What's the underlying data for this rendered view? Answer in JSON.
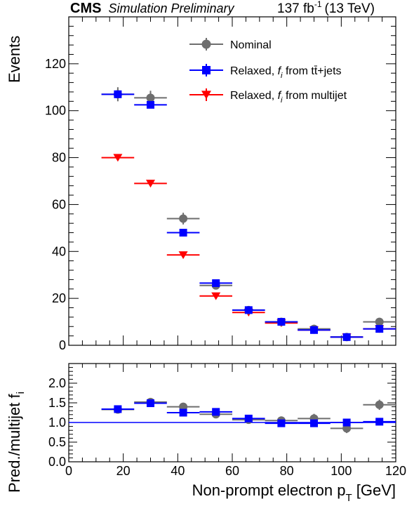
{
  "header": {
    "cms": "CMS",
    "subtitle": "Simulation Preliminary",
    "lumi_value": "137 fb",
    "lumi_exp": "-1",
    "energy": "(13 TeV)"
  },
  "colors": {
    "nominal": "#6e6e6e",
    "tt": "#0000ff",
    "multijet": "#ff0000",
    "ratio_line": "#0000ff"
  },
  "chart_data": [
    {
      "type": "scatter",
      "panel": "main",
      "ylabel": "Events",
      "ylim": [
        0,
        140
      ],
      "yticks": [
        0,
        20,
        40,
        60,
        80,
        100,
        120
      ],
      "bin_edges": [
        12,
        24,
        36,
        48,
        60,
        72,
        84,
        96,
        108,
        120
      ],
      "x": [
        18,
        30,
        42,
        54,
        66,
        78,
        90,
        102,
        114
      ],
      "legend": [
        {
          "key": "nominal",
          "label": "Nominal",
          "marker": "circle"
        },
        {
          "key": "tt",
          "label_main": "Relaxed, ",
          "f": "f",
          "i": "i",
          "label_rest": " from tt̄+jets",
          "marker": "square"
        },
        {
          "key": "multijet",
          "label_main": "Relaxed, ",
          "f": "f",
          "i": "i",
          "label_rest": " from multijet",
          "marker": "triangle"
        }
      ],
      "series": [
        {
          "name": "Nominal",
          "key": "nominal",
          "values": [
            107,
            105.5,
            54,
            25.5,
            15,
            10,
            7,
            3.5,
            10
          ],
          "errors": [
            3,
            3,
            2.5,
            1.5,
            1,
            1,
            0.8,
            0.6,
            1
          ]
        },
        {
          "name": "Relaxed, f_i from tt+jets",
          "key": "tt",
          "values": [
            107,
            102.5,
            48,
            26.5,
            15,
            10,
            6.5,
            3.5,
            7
          ],
          "errors": [
            1.2,
            1.2,
            0.8,
            0.6,
            0.5,
            0.4,
            0.3,
            0.3,
            0.3
          ]
        },
        {
          "name": "Relaxed, f_i from multijet",
          "key": "multijet",
          "values": [
            80,
            69,
            38.5,
            21,
            14,
            9.5,
            6.5,
            3.5,
            7
          ],
          "errors": [
            0.5,
            0.5,
            0.4,
            0.3,
            0.3,
            0.3,
            0.3,
            0.3,
            0.3
          ]
        }
      ]
    },
    {
      "type": "scatter",
      "panel": "ratio",
      "ylabel": "Pred./multijet f",
      "ylabel_sub": "i",
      "xlabel": "Non-prompt electron p",
      "xlabel_sub": "T",
      "xlabel_unit": " [GeV]",
      "xlim": [
        0,
        120
      ],
      "xticks": [
        0,
        20,
        40,
        60,
        80,
        100,
        120
      ],
      "ylim": [
        0,
        2.5
      ],
      "yticks": [
        "0.0",
        "0.5",
        "1.0",
        "1.5",
        "2.0"
      ],
      "reference_line": 1.0,
      "series": [
        {
          "name": "Nominal",
          "key": "nominal",
          "values": [
            1.33,
            1.52,
            1.4,
            1.21,
            1.07,
            1.05,
            1.1,
            0.85,
            1.45
          ],
          "errors": [
            0.05,
            0.05,
            0.06,
            0.06,
            0.07,
            0.08,
            0.12,
            0.12,
            0.13
          ]
        },
        {
          "name": "Relaxed, f_i from tt+jets",
          "key": "tt",
          "values": [
            1.34,
            1.49,
            1.25,
            1.27,
            1.1,
            0.98,
            0.98,
            1.0,
            1.02
          ],
          "errors": [
            0.02,
            0.02,
            0.03,
            0.03,
            0.04,
            0.04,
            0.05,
            0.06,
            0.05
          ]
        }
      ]
    }
  ]
}
